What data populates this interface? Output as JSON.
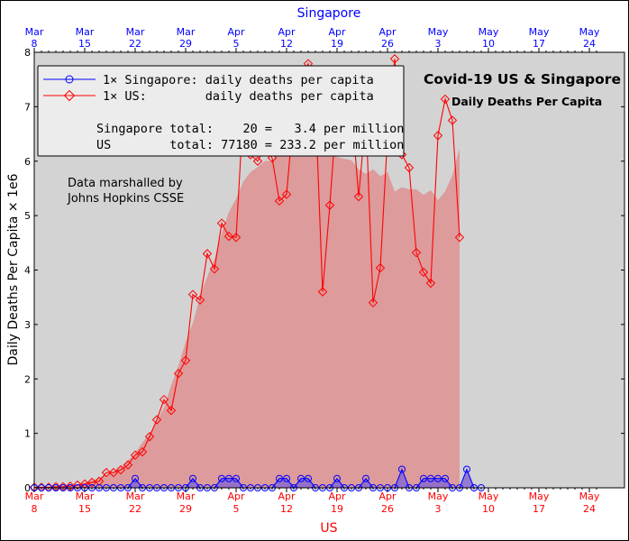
{
  "chart_data": {
    "type": "line",
    "top_axis_title": "Singapore",
    "bottom_axis_title": "US",
    "ylabel": "Daily Deaths Per Capita × 1e6",
    "title": "Covid-19 US & Singapore",
    "subtitle": "Daily Deaths Per Capita",
    "annotation_lines": [
      "Data marshalled by",
      "Johns Hopkins CSSE"
    ],
    "ylim": [
      0,
      8
    ],
    "yticks": [
      "0",
      "1",
      "2",
      "3",
      "4",
      "5",
      "6",
      "7",
      "8"
    ],
    "xlim_day": [
      0,
      78
    ],
    "x_start_note": "Mar 8",
    "xticks": [
      {
        "day": 0,
        "month": "Mar",
        "day_label": "8"
      },
      {
        "day": 7,
        "month": "Mar",
        "day_label": "15"
      },
      {
        "day": 14,
        "month": "Mar",
        "day_label": "22"
      },
      {
        "day": 21,
        "month": "Mar",
        "day_label": "29"
      },
      {
        "day": 28,
        "month": "Apr",
        "day_label": "5"
      },
      {
        "day": 35,
        "month": "Apr",
        "day_label": "12"
      },
      {
        "day": 42,
        "month": "Apr",
        "day_label": "19"
      },
      {
        "day": 49,
        "month": "Apr",
        "day_label": "26"
      },
      {
        "day": 56,
        "month": "May",
        "day_label": "3"
      },
      {
        "day": 63,
        "month": "May",
        "day_label": "10"
      },
      {
        "day": 70,
        "month": "May",
        "day_label": "17"
      },
      {
        "day": 77,
        "month": "May",
        "day_label": "24"
      }
    ],
    "series": [
      {
        "name": "1× Singapore: daily deaths per capita",
        "color": "#0000ff",
        "marker": "circle",
        "values": [
          0,
          0,
          0,
          0,
          0,
          0,
          0,
          0,
          0,
          0,
          0,
          0,
          0,
          0,
          0.17,
          0,
          0,
          0,
          0,
          0,
          0,
          0,
          0.17,
          0,
          0,
          0,
          0.17,
          0.17,
          0.17,
          0,
          0,
          0,
          0,
          0,
          0.17,
          0.17,
          0,
          0.17,
          0.17,
          0,
          0,
          0,
          0.17,
          0,
          0,
          0,
          0.17,
          0,
          0,
          0,
          0,
          0.34,
          0,
          0,
          0.17,
          0.17,
          0.17,
          0.17,
          0,
          0,
          0.34,
          0,
          0
        ]
      },
      {
        "name": "1× US: daily deaths per capita",
        "color": "#ff0000",
        "marker": "diamond",
        "values": [
          0.01,
          0.01,
          0.01,
          0.02,
          0.02,
          0.03,
          0.05,
          0.07,
          0.1,
          0.12,
          0.28,
          0.28,
          0.33,
          0.42,
          0.6,
          0.66,
          0.94,
          1.25,
          1.62,
          1.42,
          2.1,
          2.34,
          3.55,
          3.45,
          4.3,
          4.02,
          4.86,
          4.62,
          4.6,
          6.94,
          6.12,
          6.0,
          6.25,
          6.06,
          5.27,
          5.39,
          6.91,
          7.5,
          7.79,
          7.07,
          3.6,
          5.19,
          7.02,
          7.3,
          7.0,
          5.35,
          6.84,
          3.4,
          4.04,
          6.45,
          7.88,
          6.12,
          5.88,
          4.32,
          3.96,
          3.76,
          6.47,
          7.14,
          6.75,
          4.6
        ]
      }
    ],
    "legend_placement": "top-left",
    "legend_labels": [
      "1× Singapore: daily deaths per capita",
      "1× US:        daily deaths per capita"
    ],
    "totals": [
      "Singapore total:    20 =   3.4 per million",
      "US        total: 77180 = 233.2 per million"
    ],
    "colors": {
      "plot_background": "#d3d3d3",
      "us_fill": "#dd9898",
      "sg_fill": "#8a6ad0",
      "top_axis": "#0000ff",
      "bottom_axis": "#ff0000"
    }
  }
}
